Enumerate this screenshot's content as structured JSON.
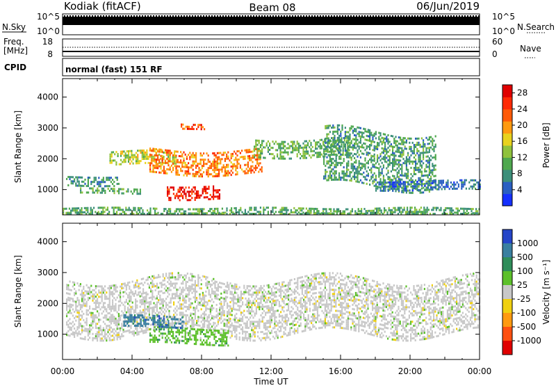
{
  "header": {
    "station": "Kodiak (fitACF)",
    "beam": "Beam 08",
    "date": "06/Jun/2019"
  },
  "aux_panels": {
    "nsky_label": "N.Sky",
    "nsky_ticks": [
      "10^5",
      "10^0"
    ],
    "nsearch_label": "N.Search",
    "nsearch_ticks": [
      "10^5",
      "10^0"
    ],
    "freq_label_1": "Freq.",
    "freq_label_2": "[MHz]",
    "freq_ticks": [
      "18",
      "8"
    ],
    "nave_label": "Nave",
    "nave_ticks": [
      "60",
      "0"
    ],
    "cpid_label": "CPID",
    "cpid_text": "normal (fast) 151 RF"
  },
  "chart_data": [
    {
      "type": "heatmap",
      "name": "power",
      "ylabel": "Slant Range [km]",
      "xlabel": "",
      "yticks": [
        "1000",
        "2000",
        "3000",
        "4000"
      ],
      "ylim": [
        180,
        4600
      ],
      "xlim_hours": [
        0,
        24
      ],
      "colorbar": {
        "label": "Power [dB]",
        "ticks": [
          "4",
          "8",
          "12",
          "16",
          "20",
          "24",
          "28"
        ],
        "colors": [
          "#1530ff",
          "#2a5fc2",
          "#3c8f7a",
          "#4fa84f",
          "#8fc23c",
          "#e8d21e",
          "#ff9a10",
          "#ff5a08",
          "#ff2a05",
          "#e00000"
        ],
        "range": [
          0,
          30
        ]
      },
      "features": [
        {
          "t0": 0.2,
          "t1": 3.2,
          "r0": 1150,
          "r1": 1450,
          "level": 8
        },
        {
          "t0": 2.7,
          "t1": 6.5,
          "r0": 1800,
          "r1": 2250,
          "level": 15
        },
        {
          "t0": 5.0,
          "t1": 11.5,
          "r0": 1500,
          "r1": 2300,
          "level": 21
        },
        {
          "t0": 6.0,
          "t1": 9.0,
          "r0": 700,
          "r1": 1150,
          "level": 27
        },
        {
          "t0": 1.0,
          "t1": 4.5,
          "r0": 850,
          "r1": 1050,
          "level": 10
        },
        {
          "t0": 11.0,
          "t1": 16.5,
          "r0": 2050,
          "r1": 2650,
          "level": 11
        },
        {
          "t0": 15.0,
          "t1": 21.5,
          "r0": 1100,
          "r1": 2900,
          "level": 9
        },
        {
          "t0": 18.0,
          "t1": 24.0,
          "r0": 1000,
          "r1": 1300,
          "level": 6
        },
        {
          "t0": 6.8,
          "t1": 8.2,
          "r0": 2950,
          "r1": 3150,
          "level": 24
        },
        {
          "t0": 0.0,
          "t1": 24.0,
          "r0": 200,
          "r1": 420,
          "level": 10
        }
      ]
    },
    {
      "type": "heatmap",
      "name": "velocity",
      "ylabel": "Slant Range [km]",
      "xlabel": "Time UT",
      "yticks": [
        "1000",
        "2000",
        "3000",
        "4000"
      ],
      "xticks": [
        "00:00",
        "04:00",
        "08:00",
        "12:00",
        "16:00",
        "20:00",
        "00:00"
      ],
      "ylim": [
        180,
        4600
      ],
      "xlim_hours": [
        0,
        24
      ],
      "colorbar": {
        "label": "Velocity [m s⁻¹]",
        "ticks": [
          "1000",
          "500",
          "100",
          "25",
          "-25",
          "-100",
          "-500",
          "-1000"
        ],
        "colors": [
          "#2545c8",
          "#3a7fa0",
          "#2f8d5a",
          "#5cc02a",
          "#c8c8c8",
          "#f0d010",
          "#ff9a10",
          "#ff5010",
          "#e00000"
        ]
      },
      "features": [
        {
          "t0": 0.2,
          "t1": 24.0,
          "r0": 1000,
          "r1": 2800,
          "level": "ground-scatter"
        },
        {
          "t0": 5.0,
          "t1": 9.5,
          "r0": 700,
          "r1": 1200,
          "level": "100"
        },
        {
          "t0": 3.5,
          "t1": 7.0,
          "r0": 1200,
          "r1": 1600,
          "level": "500"
        }
      ]
    }
  ]
}
